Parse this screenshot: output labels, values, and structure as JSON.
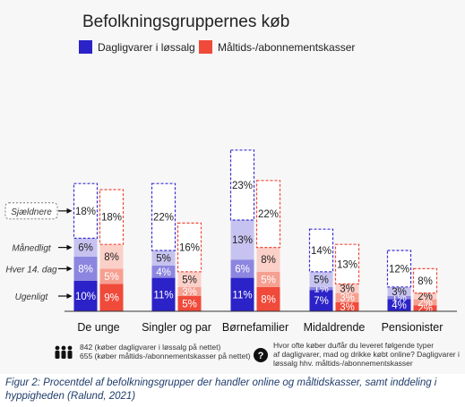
{
  "chart_data": {
    "type": "bar",
    "title": "Befolkningsgruppernes køb",
    "legend": [
      {
        "label": "Dagligvarer i løssalg",
        "color": "#2b22c7"
      },
      {
        "label": "Måltids-/abonnementskasser",
        "color": "#f04a3a"
      }
    ],
    "categories": [
      "De unge",
      "Singler og par",
      "Børnefamilier",
      "Midaldrende",
      "Pensionister"
    ],
    "frequency_levels": [
      "Ugenligt",
      "Hver 14. dag",
      "Månedligt",
      "Sjældnere"
    ],
    "series": [
      {
        "name": "Dagligvarer i løssalg",
        "segments": [
          {
            "level": "Ugenligt",
            "values": [
              10,
              11,
              11,
              7,
              4
            ]
          },
          {
            "level": "Hver 14. dag",
            "values": [
              8,
              4,
              6,
              1,
              1
            ]
          },
          {
            "level": "Månedligt",
            "values": [
              6,
              5,
              13,
              5,
              3
            ]
          },
          {
            "level": "Sjældnere",
            "values": [
              18,
              22,
              23,
              14,
              12
            ]
          }
        ],
        "colors": [
          "#2b22c7",
          "#8c86e0",
          "#c6c3f0",
          "#ffffff"
        ]
      },
      {
        "name": "Måltids-/abonnementskasser",
        "segments": [
          {
            "level": "Ugenligt",
            "values": [
              9,
              5,
              8,
              3,
              2
            ]
          },
          {
            "level": "Hver 14. dag",
            "values": [
              5,
              3,
              5,
              3,
              2
            ]
          },
          {
            "level": "Månedligt",
            "values": [
              8,
              5,
              8,
              3,
              2
            ]
          },
          {
            "level": "Sjældnere",
            "values": [
              18,
              16,
              22,
              13,
              8
            ]
          }
        ],
        "colors": [
          "#f04a3a",
          "#f6a092",
          "#fbd0c8",
          "#ffffff"
        ]
      }
    ],
    "value_suffix": "%",
    "footer_left": "842 (køber dagligvarer i løssalg på nettet)\n655 (køber måltids-/abonnementskasser på nettet)",
    "footer_right": "Hvor ofte køber du/får du leveret følgende typer af dagligvarer, mad og drikke købt online? Dagligvarer i løssalg hhv. måltids-/abonnementskasser"
  },
  "caption": "Figur 2: Procentdel af befolkningsgrupper der handler online og måltidskasser, samt inddeling i hyppigheden (Ralund, 2021)"
}
